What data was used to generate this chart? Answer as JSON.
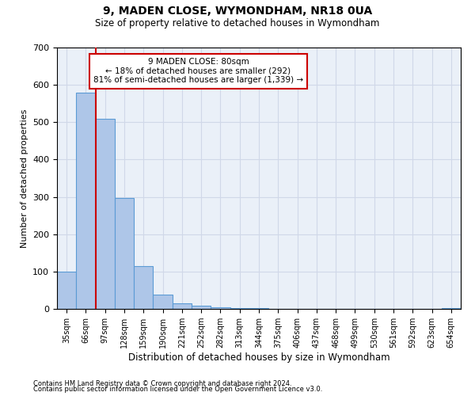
{
  "title": "9, MADEN CLOSE, WYMONDHAM, NR18 0UA",
  "subtitle": "Size of property relative to detached houses in Wymondham",
  "xlabel": "Distribution of detached houses by size in Wymondham",
  "ylabel": "Number of detached properties",
  "footnote1": "Contains HM Land Registry data © Crown copyright and database right 2024.",
  "footnote2": "Contains public sector information licensed under the Open Government Licence v3.0.",
  "categories": [
    "35sqm",
    "66sqm",
    "97sqm",
    "128sqm",
    "159sqm",
    "190sqm",
    "221sqm",
    "252sqm",
    "282sqm",
    "313sqm",
    "344sqm",
    "375sqm",
    "406sqm",
    "437sqm",
    "468sqm",
    "499sqm",
    "530sqm",
    "561sqm",
    "592sqm",
    "623sqm",
    "654sqm"
  ],
  "bar_values": [
    100,
    580,
    510,
    298,
    115,
    38,
    15,
    8,
    5,
    3,
    2,
    1,
    1,
    0,
    0,
    0,
    0,
    0,
    0,
    0,
    3
  ],
  "bar_color": "#aec6e8",
  "bar_edge_color": "#5b9bd5",
  "grid_color": "#d0d8e8",
  "background_color": "#eaf0f8",
  "property_line_x": 1.5,
  "annotation_text": "9 MADEN CLOSE: 80sqm\n← 18% of detached houses are smaller (292)\n81% of semi-detached houses are larger (1,339) →",
  "annotation_box_color": "#ffffff",
  "annotation_box_edge": "#cc0000",
  "red_line_color": "#cc0000",
  "ylim": [
    0,
    700
  ],
  "yticks": [
    0,
    100,
    200,
    300,
    400,
    500,
    600,
    700
  ]
}
